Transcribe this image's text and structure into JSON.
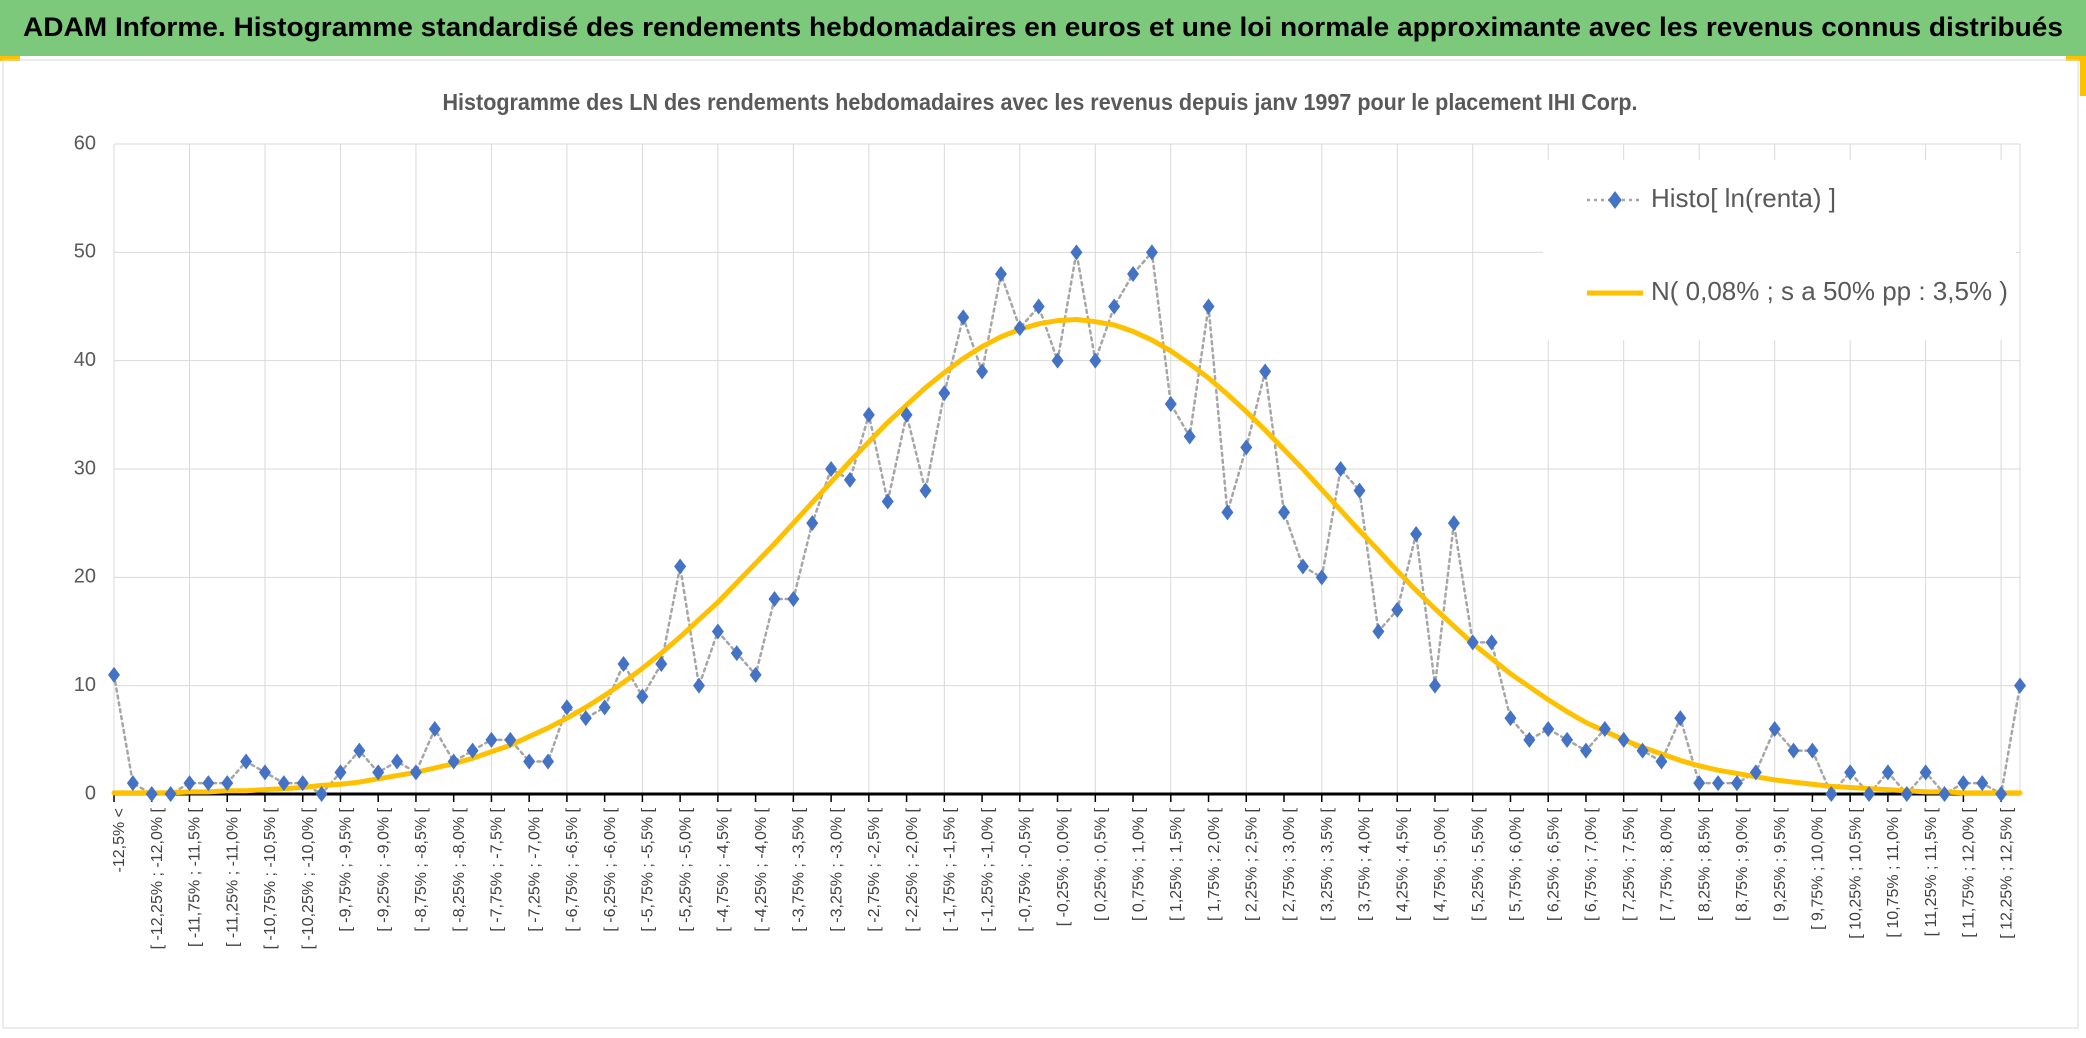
{
  "header": {
    "title": "ADAM Informe. Histogramme standardisé des rendements hebdomadaires en euros et une loi normale approximante avec les revenus connus distribués"
  },
  "chart_data": {
    "type": "line",
    "title": "Histogramme des LN des rendements hebdomadaires avec les revenus depuis janv 1997 pour le placement IHI Corp.",
    "categories": [
      "-12,5% <",
      null,
      "[ -12,25% ; -12,0% [",
      null,
      "[ -11,75% ; -11,5% [",
      null,
      "[ -11,25% ; -11,0% [",
      null,
      "[ -10,75% ; -10,5% [",
      null,
      "[ -10,25% ; -10,0% [",
      null,
      "[ -9,75% ; -9,5% [",
      null,
      "[ -9,25% ; -9,0% [",
      null,
      "[ -8,75% ; -8,5% [",
      null,
      "[ -8,25% ; -8,0% [",
      null,
      "[ -7,75% ; -7,5% [",
      null,
      "[ -7,25% ; -7,0% [",
      null,
      "[ -6,75% ; -6,5% [",
      null,
      "[ -6,25% ; -6,0% [",
      null,
      "[ -5,75% ; -5,5% [",
      null,
      "[ -5,25% ; -5,0% [",
      null,
      "[ -4,75% ; -4,5% [",
      null,
      "[ -4,25% ; -4,0% [",
      null,
      "[ -3,75% ; -3,5% [",
      null,
      "[ -3,25% ; -3,0% [",
      null,
      "[ -2,75% ; -2,5% [",
      null,
      "[ -2,25% ; -2,0% [",
      null,
      "[ -1,75% ; -1,5% [",
      null,
      "[ -1,25% ; -1,0% [",
      null,
      "[ -0,75% ; -0,5% [",
      null,
      "[ -0,25% ; 0,0% [",
      null,
      "[ 0,25% ; 0,5% [",
      null,
      "[ 0,75% ; 1,0% [",
      null,
      "[ 1,25% ; 1,5% [",
      null,
      "[ 1,75% ; 2,0% [",
      null,
      "[ 2,25% ; 2,5% [",
      null,
      "[ 2,75% ; 3,0% [",
      null,
      "[ 3,25% ; 3,5% [",
      null,
      "[ 3,75% ; 4,0% [",
      null,
      "[ 4,25% ; 4,5% [",
      null,
      "[ 4,75% ; 5,0% [",
      null,
      "[ 5,25% ; 5,5% [",
      null,
      "[ 5,75% ; 6,0% [",
      null,
      "[ 6,25% ; 6,5% [",
      null,
      "[ 6,75% ; 7,0% [",
      null,
      "[ 7,25% ; 7,5% [",
      null,
      "[ 7,75% ; 8,0% [",
      null,
      "[ 8,25% ; 8,5% [",
      null,
      "[ 8,75% ; 9,0% [",
      null,
      "[ 9,25% ; 9,5% [",
      null,
      "[ 9,75% ; 10,0% [",
      null,
      "[ 10,25% ; 10,5% [",
      null,
      "[ 10,75% ; 11,0% [",
      null,
      "[ 11,25% ; 11,5% [",
      null,
      "[ 11,75% ; 12,0% [",
      null,
      "[ 12,25% ; 12,5% [",
      null
    ],
    "series": [
      {
        "name": "Histo[ ln(renta) ]",
        "color": "#4472c4",
        "line_color": "#a6a6a6",
        "marker": "diamond",
        "line_style": "dotted",
        "values": [
          11,
          1,
          0,
          0,
          1,
          1,
          1,
          3,
          2,
          1,
          1,
          0,
          2,
          4,
          2,
          3,
          2,
          6,
          3,
          4,
          5,
          5,
          3,
          3,
          8,
          7,
          8,
          12,
          9,
          12,
          21,
          10,
          15,
          13,
          11,
          18,
          18,
          25,
          30,
          29,
          35,
          27,
          35,
          28,
          37,
          44,
          39,
          48,
          43,
          45,
          40,
          50,
          40,
          45,
          48,
          50,
          36,
          33,
          45,
          26,
          32,
          39,
          26,
          21,
          20,
          30,
          28,
          15,
          17,
          24,
          10,
          25,
          14,
          14,
          7,
          5,
          6,
          5,
          4,
          6,
          5,
          4,
          3,
          7,
          1,
          1,
          1,
          2,
          6,
          4,
          4,
          0,
          2,
          0,
          2,
          0,
          2,
          0,
          1,
          1,
          0,
          10
        ]
      },
      {
        "name": "N( 0,08% ; s a 50% pp : 3,5% )",
        "color": "#ffc000",
        "line_style": "solid",
        "values": [
          0.1,
          0.1,
          0.1,
          0.1,
          0.2,
          0.2,
          0.3,
          0.3,
          0.4,
          0.5,
          0.6,
          0.8,
          0.9,
          1.1,
          1.4,
          1.7,
          2.0,
          2.4,
          2.8,
          3.3,
          3.9,
          4.5,
          5.3,
          6.1,
          7.0,
          8.0,
          9.1,
          10.3,
          11.6,
          13.0,
          14.5,
          16.1,
          17.7,
          19.5,
          21.3,
          23.1,
          25.0,
          26.9,
          28.8,
          30.7,
          32.5,
          34.3,
          35.9,
          37.5,
          38.9,
          40.2,
          41.3,
          42.2,
          42.9,
          43.4,
          43.7,
          43.8,
          43.6,
          43.3,
          42.7,
          41.9,
          40.9,
          39.7,
          38.4,
          36.9,
          35.3,
          33.6,
          31.8,
          30.0,
          28.1,
          26.2,
          24.3,
          22.5,
          20.6,
          18.8,
          17.1,
          15.5,
          13.9,
          12.5,
          11.1,
          9.9,
          8.7,
          7.6,
          6.6,
          5.8,
          5.0,
          4.3,
          3.7,
          3.1,
          2.6,
          2.2,
          1.9,
          1.6,
          1.3,
          1.1,
          0.9,
          0.7,
          0.6,
          0.5,
          0.4,
          0.3,
          0.2,
          0.2,
          0.1,
          0.1,
          0.1,
          0.1
        ]
      }
    ],
    "ylim": [
      0,
      60
    ],
    "yticks": [
      0,
      10,
      20,
      30,
      40,
      50,
      60
    ],
    "grid": true,
    "legend": "top-right"
  }
}
